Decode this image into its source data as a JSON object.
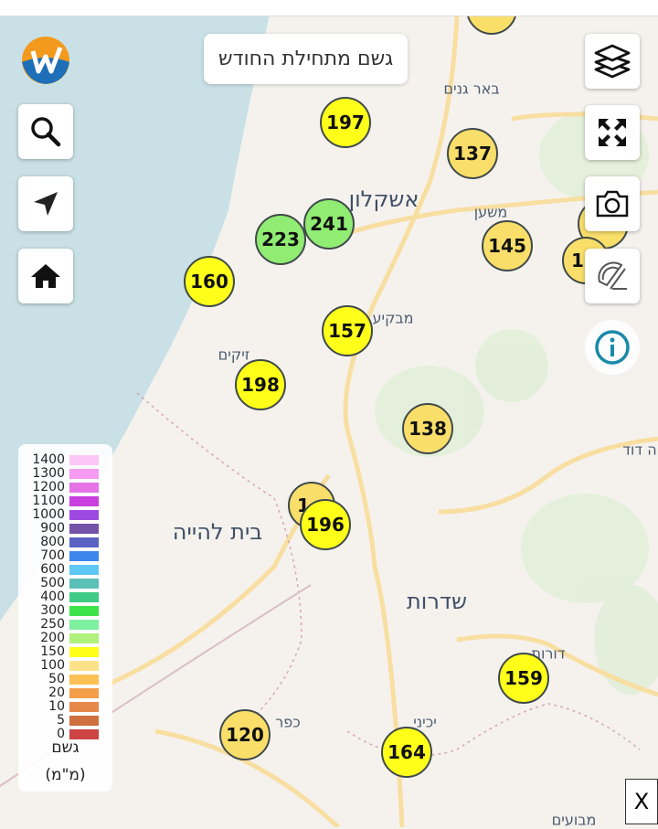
{
  "title_chip": "גשם מתחילת החודש",
  "legend": {
    "title": "גשם",
    "unit": "(מ\"מ)",
    "items": [
      {
        "label": "1400",
        "color": "#fbc8f5"
      },
      {
        "label": "1300",
        "color": "#f79af0"
      },
      {
        "label": "1200",
        "color": "#e673e6"
      },
      {
        "label": "1100",
        "color": "#c93fe0"
      },
      {
        "label": "1000",
        "color": "#9c4ae0"
      },
      {
        "label": "900",
        "color": "#7452a8"
      },
      {
        "label": "800",
        "color": "#5a62c4"
      },
      {
        "label": "700",
        "color": "#3d86ee"
      },
      {
        "label": "600",
        "color": "#5fc8f5"
      },
      {
        "label": "500",
        "color": "#5cbfb8"
      },
      {
        "label": "400",
        "color": "#3fcb84"
      },
      {
        "label": "300",
        "color": "#3ee34c"
      },
      {
        "label": "250",
        "color": "#7ef0a0"
      },
      {
        "label": "200",
        "color": "#b0f07c"
      },
      {
        "label": "150",
        "color": "#ffff1a"
      },
      {
        "label": "100",
        "color": "#fce38a"
      },
      {
        "label": "50",
        "color": "#fcc155"
      },
      {
        "label": "20",
        "color": "#f59e4a"
      },
      {
        "label": "10",
        "color": "#e5884a"
      },
      {
        "label": "5",
        "color": "#cf7040"
      },
      {
        "label": "0",
        "color": "#cc4444"
      }
    ]
  },
  "markers": [
    {
      "value": "",
      "color": "#f9de6a"
    },
    {
      "value": "197",
      "color": "#ffff1a"
    },
    {
      "value": "137",
      "color": "#f9de6a"
    },
    {
      "value": "241",
      "color": "#90ec72"
    },
    {
      "value": "223",
      "color": "#90ec72"
    },
    {
      "value": "145",
      "color": "#f9de6a"
    },
    {
      "value": "",
      "color": "#f9de6a"
    },
    {
      "value": "1",
      "color": "#f9de6a"
    },
    {
      "value": "160",
      "color": "#ffff1a"
    },
    {
      "value": "157",
      "color": "#ffff1a"
    },
    {
      "value": "198",
      "color": "#ffff1a"
    },
    {
      "value": "138",
      "color": "#f9de6a"
    },
    {
      "value": "1",
      "color": "#f9de6a"
    },
    {
      "value": "196",
      "color": "#ffff1a"
    },
    {
      "value": "159",
      "color": "#ffff1a"
    },
    {
      "value": "120",
      "color": "#f9de6a"
    },
    {
      "value": "164",
      "color": "#ffff1a"
    }
  ],
  "places": [
    "אשקלון",
    "באר גנים",
    "משען",
    "מבקיע",
    "זיקים",
    "בית להייה",
    "שדרות",
    "דורות",
    "כפר",
    "יכיני",
    "מבועים",
    "ה דוד"
  ],
  "close_label": "X",
  "icons": {
    "logo": "w-logo",
    "search": "search-icon",
    "locate": "navigation-arrow-icon",
    "home": "home-icon",
    "layers": "layers-icon",
    "fullscreen": "expand-icon",
    "camera": "camera-icon",
    "measure": "protractor-icon",
    "info": "info-icon"
  }
}
